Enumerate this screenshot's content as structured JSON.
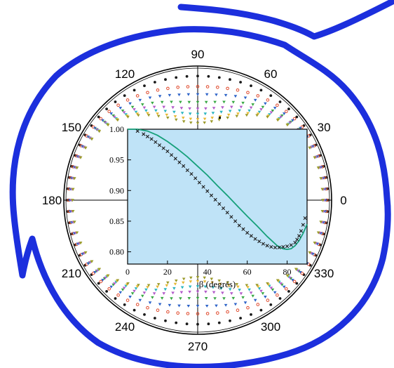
{
  "chart_data": [
    {
      "type": "scatter",
      "subtype": "polar",
      "angle_labels": [
        "90",
        "60",
        "30",
        "0",
        "330",
        "300",
        "270",
        "240",
        "210",
        "180",
        "150",
        "120"
      ],
      "angle_values": [
        90,
        60,
        30,
        0,
        330,
        300,
        270,
        240,
        210,
        180,
        150,
        120
      ],
      "radial_range": [
        0,
        1
      ],
      "series": [
        {
          "color": "#1a1a1a",
          "marker": "circle",
          "equator_r": 1.0,
          "polar_r": 0.95
        },
        {
          "color": "#e0482a",
          "marker": "circle-open",
          "equator_r": 0.99,
          "polar_r": 0.87
        },
        {
          "color": "#2d63c8",
          "marker": "triangle-down",
          "equator_r": 0.98,
          "polar_r": 0.81
        },
        {
          "color": "#38a843",
          "marker": "triangle-down",
          "equator_r": 0.97,
          "polar_r": 0.75
        },
        {
          "color": "#b25ac9",
          "marker": "triangle-down",
          "equator_r": 0.97,
          "polar_r": 0.7
        },
        {
          "color": "#2bb5c0",
          "marker": "triangle-down",
          "equator_r": 0.96,
          "polar_r": 0.66
        },
        {
          "color": "#e6b833",
          "marker": "triangle-down",
          "equator_r": 0.96,
          "polar_r": 0.62
        },
        {
          "color": "#9b9a2a",
          "marker": "triangle-down",
          "equator_r": 0.96,
          "polar_r": 0.59
        }
      ]
    },
    {
      "type": "line",
      "xlabel": "β (degrés)",
      "xlim": [
        0,
        90
      ],
      "ylim": [
        0.78,
        1.0
      ],
      "xticks": [
        "0",
        "20",
        "40",
        "60",
        "80"
      ],
      "yticks": [
        "0.80",
        "0.85",
        "0.90",
        "0.95",
        "1.00"
      ],
      "background": "#bfe3f7",
      "series": [
        {
          "style": "line",
          "color": "#16a07a",
          "x": [
            0,
            5,
            10,
            15,
            20,
            25,
            30,
            35,
            40,
            45,
            50,
            55,
            60,
            65,
            70,
            75,
            78,
            80,
            82,
            84,
            86,
            88,
            90
          ],
          "y": [
            1.0,
            1.0,
            0.997,
            0.99,
            0.98,
            0.968,
            0.955,
            0.94,
            0.925,
            0.908,
            0.892,
            0.875,
            0.858,
            0.842,
            0.825,
            0.81,
            0.805,
            0.804,
            0.805,
            0.81,
            0.818,
            0.83,
            0.845
          ]
        },
        {
          "style": "markers",
          "marker": "x",
          "color": "#1a1a1a",
          "x": [
            5,
            8,
            10,
            12,
            14,
            16,
            18,
            20,
            22,
            24,
            26,
            28,
            30,
            32,
            34,
            36,
            38,
            40,
            42,
            44,
            46,
            48,
            50,
            52,
            54,
            56,
            58,
            60,
            62,
            64,
            66,
            68,
            70,
            72,
            74,
            76,
            78,
            80,
            82,
            84,
            85,
            86,
            87,
            88,
            89
          ],
          "y": [
            0.997,
            0.992,
            0.988,
            0.984,
            0.979,
            0.974,
            0.969,
            0.964,
            0.958,
            0.952,
            0.946,
            0.94,
            0.933,
            0.927,
            0.92,
            0.913,
            0.906,
            0.899,
            0.892,
            0.885,
            0.878,
            0.871,
            0.864,
            0.857,
            0.85,
            0.843,
            0.837,
            0.831,
            0.826,
            0.821,
            0.817,
            0.813,
            0.81,
            0.808,
            0.807,
            0.807,
            0.808,
            0.809,
            0.811,
            0.815,
            0.82,
            0.826,
            0.834,
            0.844,
            0.855
          ]
        }
      ]
    }
  ]
}
